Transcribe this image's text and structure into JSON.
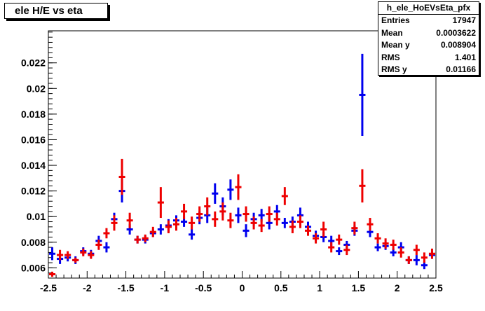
{
  "chart_data": {
    "type": "scatter",
    "title": "ele H/E vs eta",
    "xlabel": "",
    "ylabel": "",
    "xlim": [
      -2.5,
      2.5
    ],
    "ylim": [
      0.0052,
      0.0245
    ],
    "x_ticks": [
      -2.5,
      -2,
      -1.5,
      -1,
      -0.5,
      0,
      0.5,
      1,
      1.5,
      2,
      2.5
    ],
    "x_tick_labels": [
      "-2.5",
      "-2",
      "-1.5",
      "-1",
      "-0.5",
      "0",
      "0.5",
      "1",
      "1.5",
      "2",
      "2.5"
    ],
    "y_ticks": [
      0.006,
      0.008,
      0.01,
      0.012,
      0.014,
      0.016,
      0.018,
      0.02,
      0.022
    ],
    "y_tick_labels": [
      "0.006",
      "0.008",
      "0.01",
      "0.012",
      "0.014",
      "0.016",
      "0.018",
      "0.02",
      "0.022"
    ],
    "grid": false,
    "bin_width": 0.1,
    "stats": {
      "name": "h_ele_HoEVsEta_pfx",
      "rows": [
        {
          "label": "Entries",
          "value": "17947"
        },
        {
          "label": "Mean",
          "value": "0.0003622"
        },
        {
          "label": "Mean y",
          "value": "0.008904"
        },
        {
          "label": "RMS",
          "value": "1.401"
        },
        {
          "label": "RMS y",
          "value": "0.01166"
        }
      ]
    },
    "series": [
      {
        "color": "#0000ee",
        "x": [
          -2.45,
          -2.35,
          -2.25,
          -2.15,
          -2.05,
          -1.95,
          -1.85,
          -1.75,
          -1.65,
          -1.55,
          -1.45,
          -1.35,
          -1.25,
          -1.15,
          -1.05,
          -0.95,
          -0.85,
          -0.75,
          -0.65,
          -0.55,
          -0.45,
          -0.35,
          -0.25,
          -0.15,
          -0.05,
          0.05,
          0.15,
          0.25,
          0.35,
          0.45,
          0.55,
          0.65,
          0.75,
          0.85,
          0.95,
          1.05,
          1.15,
          1.25,
          1.35,
          1.45,
          1.55,
          1.65,
          1.75,
          1.85,
          1.95,
          2.05,
          2.15,
          2.25,
          2.35,
          2.45
        ],
        "y": [
          0.0071,
          0.0067,
          0.0068,
          0.0066,
          0.0073,
          0.0071,
          0.0081,
          0.0076,
          0.0098,
          0.012,
          0.009,
          0.0082,
          0.0082,
          0.0087,
          0.009,
          0.0093,
          0.0097,
          0.0096,
          0.0086,
          0.0099,
          0.0101,
          0.0118,
          0.0108,
          0.0121,
          0.0101,
          0.0089,
          0.0098,
          0.0101,
          0.0095,
          0.0104,
          0.0095,
          0.0096,
          0.0101,
          0.0092,
          0.0085,
          0.0084,
          0.0081,
          0.0073,
          0.0078,
          0.0089,
          0.0195,
          0.0088,
          0.0076,
          0.0077,
          0.0072,
          0.0076,
          0.0066,
          0.0066,
          0.0062,
          0.007
        ],
        "err": [
          0.0005,
          0.0004,
          0.0003,
          0.0003,
          0.0003,
          0.0003,
          0.0004,
          0.0004,
          0.0005,
          0.0009,
          0.0004,
          0.0003,
          0.0003,
          0.0003,
          0.0004,
          0.0005,
          0.0004,
          0.0004,
          0.0004,
          0.0005,
          0.0006,
          0.0008,
          0.0007,
          0.0008,
          0.0006,
          0.0005,
          0.0005,
          0.0005,
          0.0005,
          0.0005,
          0.0004,
          0.0004,
          0.0006,
          0.0004,
          0.0004,
          0.0004,
          0.0004,
          0.0003,
          0.0003,
          0.0004,
          0.0032,
          0.0004,
          0.0003,
          0.0003,
          0.0003,
          0.0004,
          0.0003,
          0.0004,
          0.0003,
          0.0003
        ]
      },
      {
        "color": "#ee0000",
        "x": [
          -2.45,
          -2.35,
          -2.25,
          -2.15,
          -2.05,
          -1.95,
          -1.85,
          -1.75,
          -1.65,
          -1.55,
          -1.45,
          -1.35,
          -1.25,
          -1.15,
          -1.05,
          -0.95,
          -0.85,
          -0.75,
          -0.65,
          -0.55,
          -0.45,
          -0.35,
          -0.25,
          -0.15,
          -0.05,
          0.05,
          0.15,
          0.25,
          0.35,
          0.45,
          0.55,
          0.65,
          0.75,
          0.85,
          0.95,
          1.05,
          1.15,
          1.25,
          1.35,
          1.45,
          1.55,
          1.65,
          1.75,
          1.85,
          1.95,
          2.05,
          2.15,
          2.25,
          2.35,
          2.45
        ],
        "y": [
          0.0055,
          0.007,
          0.007,
          0.0066,
          0.0072,
          0.007,
          0.0078,
          0.0087,
          0.0095,
          0.0131,
          0.0097,
          0.0082,
          0.0083,
          0.0088,
          0.0111,
          0.0092,
          0.0094,
          0.0104,
          0.0095,
          0.0102,
          0.0108,
          0.0098,
          0.0104,
          0.0097,
          0.0123,
          0.0102,
          0.0095,
          0.0093,
          0.0102,
          0.0098,
          0.0116,
          0.0092,
          0.0096,
          0.0089,
          0.0083,
          0.009,
          0.0076,
          0.0082,
          0.0074,
          0.0091,
          0.0124,
          0.0094,
          0.0083,
          0.0079,
          0.0078,
          0.0072,
          0.0066,
          0.0074,
          0.0068,
          0.0071
        ],
        "err": [
          0.0002,
          0.0004,
          0.0003,
          0.0002,
          0.0003,
          0.0003,
          0.0004,
          0.0004,
          0.0006,
          0.0014,
          0.0006,
          0.0003,
          0.0003,
          0.0004,
          0.0012,
          0.0005,
          0.0005,
          0.0006,
          0.0005,
          0.0006,
          0.0007,
          0.0006,
          0.0007,
          0.0006,
          0.001,
          0.0006,
          0.0005,
          0.0005,
          0.0006,
          0.0005,
          0.0007,
          0.0005,
          0.0005,
          0.0004,
          0.0004,
          0.0006,
          0.0004,
          0.0004,
          0.0004,
          0.0005,
          0.0013,
          0.0005,
          0.0004,
          0.0004,
          0.0004,
          0.0004,
          0.0003,
          0.0004,
          0.0004,
          0.0004
        ]
      }
    ]
  }
}
